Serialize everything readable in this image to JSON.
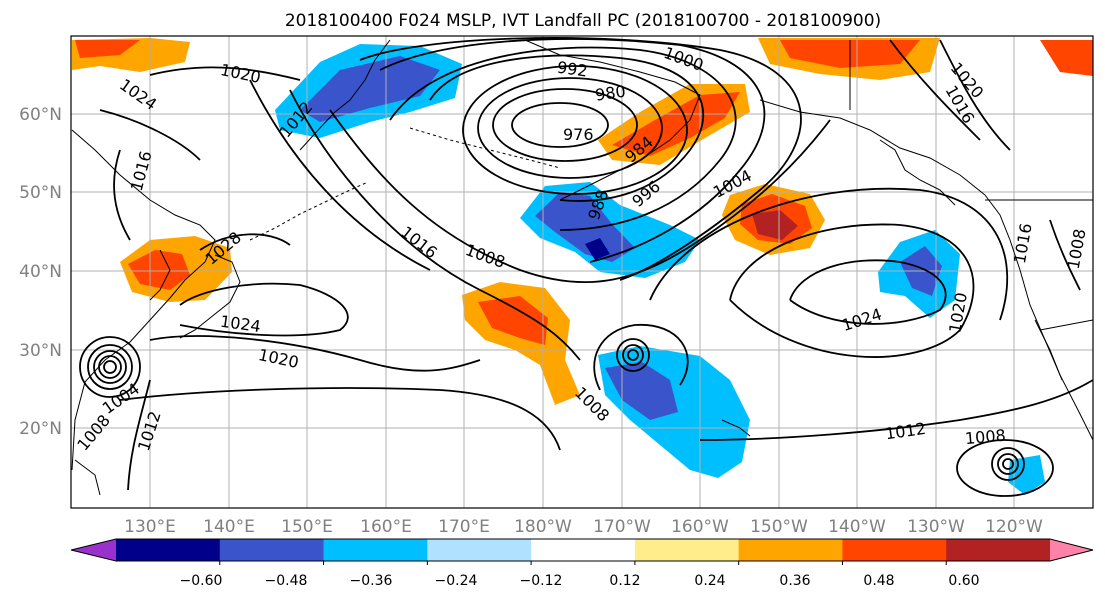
{
  "title": "2018100400 F024 MSLP, IVT Landfall PC (2018100700 - 2018100900)",
  "lat_labels": [
    "60°N",
    "50°N",
    "40°N",
    "30°N",
    "20°N"
  ],
  "lon_labels": [
    "130°E",
    "140°E",
    "150°E",
    "160°E",
    "170°E",
    "180°W",
    "170°W",
    "160°W",
    "150°W",
    "140°W",
    "130°W",
    "120°W"
  ],
  "contour_labels": [
    "1020",
    "1024",
    "1016",
    "1012",
    "992",
    "1000",
    "980",
    "976",
    "984",
    "988",
    "996",
    "1004",
    "1028",
    "1016",
    "1008",
    "1024",
    "1020",
    "1008",
    "1024",
    "1020",
    "1012",
    "1008",
    "1008",
    "1004",
    "1012",
    "1016",
    "1020",
    "1016",
    "1008"
  ],
  "colorbar": {
    "tick_labels": [
      "−0.60",
      "−0.48",
      "−0.36",
      "−0.24",
      "−0.12",
      "0.12",
      "0.24",
      "0.36",
      "0.48",
      "0.60"
    ],
    "colors": [
      "#9932cc",
      "#00008b",
      "#3a55cc",
      "#00bfff",
      "#b0e2ff",
      "#ffffff",
      "#ffec8b",
      "#ffa500",
      "#ff4500",
      "#b22222",
      "#ff82ab"
    ]
  },
  "map_features": [
    "coastline-icon",
    "gridline-icon",
    "isobar-icon",
    "ivt-anomaly-shading-icon"
  ]
}
